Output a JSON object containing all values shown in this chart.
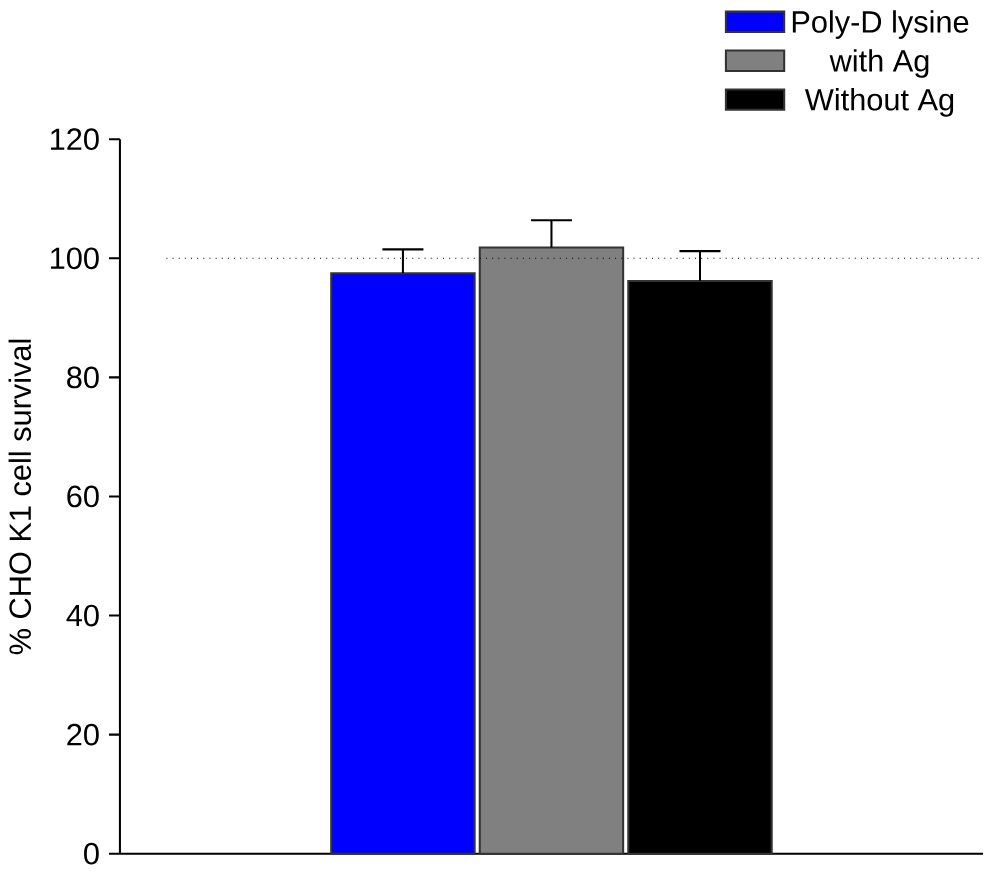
{
  "chart_data": {
    "type": "bar",
    "ylabel": "% CHO K1 cell survival",
    "categories": [
      null
    ],
    "series": [
      {
        "name": "Poly-D lysine",
        "color": "#0000ff",
        "values": [
          97.5
        ],
        "errors": [
          4
        ]
      },
      {
        "name": "with Ag",
        "color": "#808080",
        "values": [
          101.8
        ],
        "errors": [
          4.6
        ]
      },
      {
        "name": "Without Ag",
        "color": "#000000",
        "values": [
          96.2
        ],
        "errors": [
          5
        ]
      }
    ],
    "ylim": [
      0,
      120
    ],
    "yticks": [
      0,
      20,
      40,
      60,
      80,
      100,
      120
    ],
    "grid": false,
    "legend": "top right",
    "ref_lines": [
      {
        "axis": "y",
        "value": 100,
        "line_style": "dotted"
      }
    ]
  }
}
